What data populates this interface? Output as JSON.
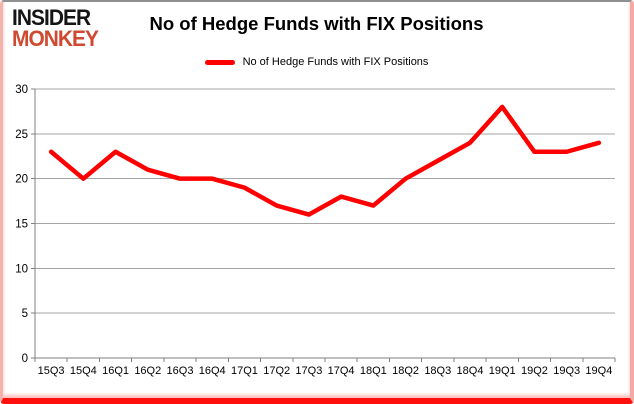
{
  "header": {
    "logo_line1": "INSIDER",
    "logo_line2": "MONKEY",
    "title": "No of Hedge Funds with FIX Positions"
  },
  "legend": {
    "label": "No of Hedge Funds with FIX Positions"
  },
  "colors": {
    "brand_red": "#cf4a31",
    "line_red": "#ff0000",
    "gridline_gray": "#a6a6a6",
    "axis_gray": "#808080",
    "label_black": "#000000"
  },
  "chart_data": {
    "type": "line",
    "title": "No of Hedge Funds with FIX Positions",
    "categories": [
      "15Q3",
      "15Q4",
      "16Q1",
      "16Q2",
      "16Q3",
      "16Q4",
      "17Q1",
      "17Q2",
      "17Q3",
      "17Q4",
      "18Q1",
      "18Q2",
      "18Q3",
      "18Q4",
      "19Q1",
      "19Q2",
      "19Q3",
      "19Q4"
    ],
    "series": [
      {
        "name": "No of Hedge Funds with FIX Positions",
        "color": "#ff0000",
        "values": [
          23,
          20,
          23,
          21,
          20,
          20,
          19,
          17,
          16,
          18,
          17,
          20,
          22,
          24,
          28,
          23,
          23,
          24
        ]
      }
    ],
    "xlabel": "",
    "ylabel": "",
    "ylim": [
      0,
      30
    ],
    "yticks": [
      0,
      5,
      10,
      15,
      20,
      25,
      30
    ],
    "grid": true,
    "legend_position": "top"
  }
}
